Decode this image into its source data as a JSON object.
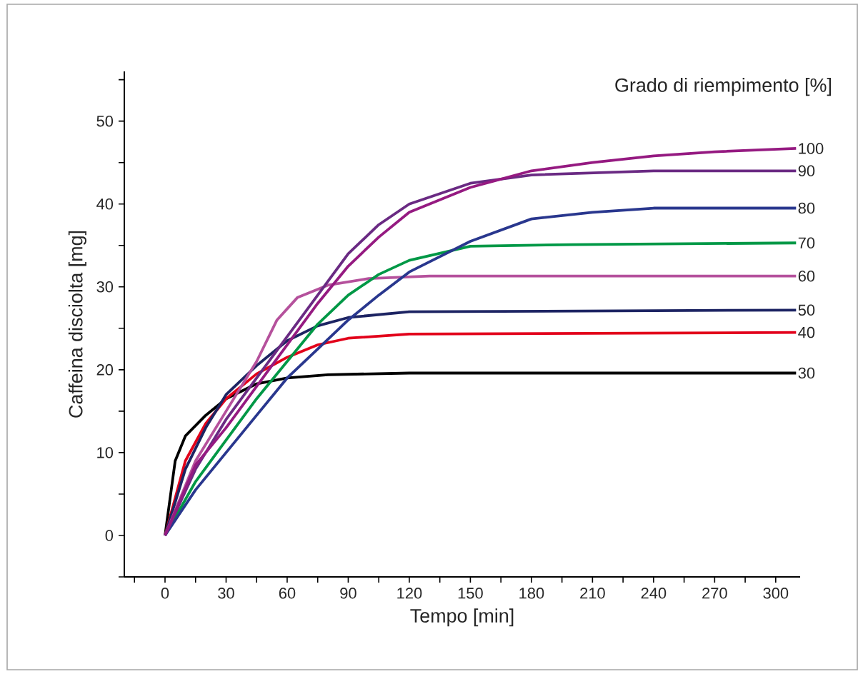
{
  "chart_data": {
    "type": "line",
    "legend_title": "Grado di riempimento [%]",
    "xlabel": "Tempo [min]",
    "ylabel": "Caffeina disciolta [mg]",
    "xlim": [
      -20,
      312
    ],
    "ylim": [
      -5,
      56
    ],
    "xticks": [
      {
        "value": -15,
        "label": null
      },
      0,
      {
        "value": 15,
        "label": null
      },
      30,
      {
        "value": 45,
        "label": null
      },
      60,
      {
        "value": 75,
        "label": null
      },
      90,
      {
        "value": 105,
        "label": null
      },
      120,
      {
        "value": 135,
        "label": null
      },
      150,
      {
        "value": 165,
        "label": null
      },
      180,
      {
        "value": 195,
        "label": null
      },
      210,
      {
        "value": 225,
        "label": null
      },
      240,
      {
        "value": 255,
        "label": null
      },
      270,
      {
        "value": 285,
        "label": null
      },
      300
    ],
    "yticks": [
      {
        "value": -5,
        "label": null
      },
      0,
      {
        "value": 5,
        "label": null
      },
      10,
      {
        "value": 15,
        "label": null
      },
      20,
      {
        "value": 25,
        "label": null
      },
      30,
      {
        "value": 35,
        "label": null
      },
      40,
      {
        "value": 45,
        "label": null
      },
      50,
      {
        "value": 55,
        "label": null
      }
    ],
    "series": [
      {
        "name": "30",
        "color": "#000000",
        "x": [
          0,
          5,
          10,
          20,
          30,
          45,
          60,
          80,
          120,
          310
        ],
        "values": [
          0,
          9,
          12,
          14.5,
          16.5,
          18.3,
          19,
          19.4,
          19.6,
          19.6
        ]
      },
      {
        "name": "40",
        "color": "#e2001a",
        "x": [
          0,
          10,
          20,
          30,
          45,
          60,
          75,
          90,
          120,
          310
        ],
        "values": [
          0,
          9,
          13.5,
          16.5,
          19.5,
          21.5,
          23,
          23.8,
          24.3,
          24.5
        ]
      },
      {
        "name": "50",
        "color": "#1d2463",
        "x": [
          0,
          10,
          20,
          30,
          45,
          60,
          75,
          90,
          120,
          310
        ],
        "values": [
          0,
          8,
          13,
          17,
          20.5,
          23.5,
          25.3,
          26.3,
          27,
          27.2
        ]
      },
      {
        "name": "60",
        "color": "#b5519c",
        "x": [
          0,
          15,
          30,
          45,
          55,
          65,
          80,
          100,
          130,
          310
        ],
        "values": [
          0,
          9,
          15,
          21,
          26,
          28.7,
          30.2,
          31,
          31.3,
          31.3
        ]
      },
      {
        "name": "70",
        "color": "#009846",
        "x": [
          0,
          15,
          30,
          45,
          60,
          75,
          90,
          105,
          120,
          150,
          200,
          310
        ],
        "values": [
          0,
          6.5,
          11.5,
          16.5,
          21,
          25.5,
          29,
          31.5,
          33.2,
          34.9,
          35.1,
          35.3
        ]
      },
      {
        "name": "80",
        "color": "#29378e",
        "x": [
          0,
          15,
          30,
          45,
          60,
          75,
          90,
          105,
          120,
          150,
          180,
          210,
          240,
          310
        ],
        "values": [
          0,
          5.5,
          10,
          14.5,
          19,
          22.5,
          26,
          29,
          31.8,
          35.5,
          38.2,
          39,
          39.5,
          39.5
        ]
      },
      {
        "name": "90",
        "color": "#6a2a83",
        "x": [
          0,
          15,
          30,
          45,
          60,
          75,
          90,
          105,
          120,
          150,
          180,
          240,
          310
        ],
        "values": [
          0,
          8,
          14,
          19,
          24,
          29,
          34,
          37.5,
          40,
          42.5,
          43.5,
          44,
          44
        ]
      },
      {
        "name": "100",
        "color": "#951a81",
        "x": [
          0,
          15,
          30,
          45,
          60,
          75,
          90,
          105,
          120,
          150,
          180,
          210,
          240,
          270,
          310
        ],
        "values": [
          0,
          8.5,
          13,
          18,
          23,
          28,
          32.5,
          36,
          39,
          42,
          44,
          45,
          45.8,
          46.3,
          46.7
        ]
      }
    ]
  }
}
